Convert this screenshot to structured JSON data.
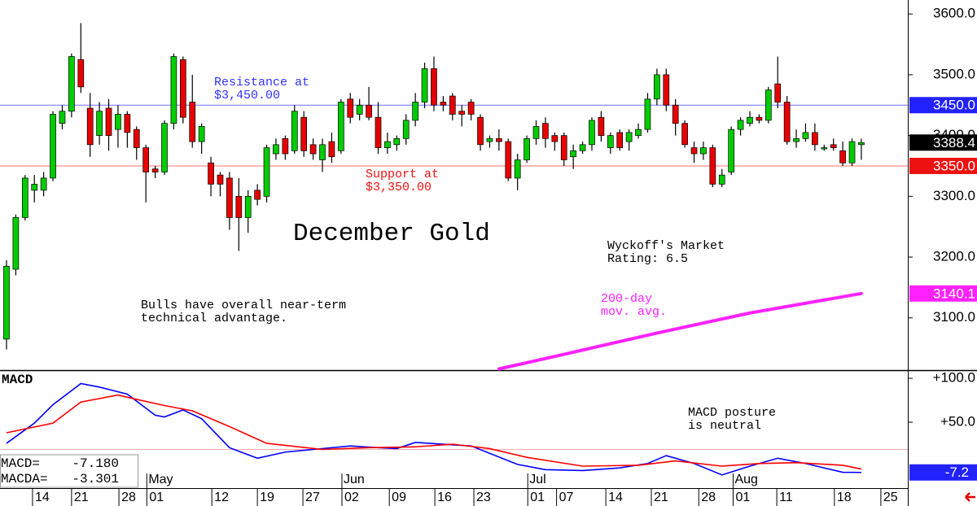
{
  "chart_data": {
    "type": "candlestick",
    "title": "December Gold",
    "up_color": "#00cc00",
    "down_color": "#e60000",
    "xlim": [
      -0.7,
      97
    ],
    "ylim": [
      3014,
      3623
    ],
    "yticks": [
      {
        "value": 3100,
        "label": "3100.0"
      },
      {
        "value": 3200,
        "label": "3200.0"
      },
      {
        "value": 3300,
        "label": "3300.0"
      },
      {
        "value": 3400,
        "label": "3400.0"
      },
      {
        "value": 3500,
        "label": "3500.0"
      },
      {
        "value": 3600,
        "label": "3600.0"
      }
    ],
    "xticks": [
      {
        "value": 2.8,
        "label": "14"
      },
      {
        "value": 7.0,
        "label": "21"
      },
      {
        "value": 12.1,
        "label": "28"
      },
      {
        "value": 15.1,
        "label": "01"
      },
      {
        "value": 22.1,
        "label": "12"
      },
      {
        "value": 27.0,
        "label": "19"
      },
      {
        "value": 31.9,
        "label": "27"
      },
      {
        "value": 36.1,
        "label": "02"
      },
      {
        "value": 41.2,
        "label": "09"
      },
      {
        "value": 46.1,
        "label": "16"
      },
      {
        "value": 50.3,
        "label": "23"
      },
      {
        "value": 56.1,
        "label": "01"
      },
      {
        "value": 59.2,
        "label": "07"
      },
      {
        "value": 64.5,
        "label": "14"
      },
      {
        "value": 69.4,
        "label": "21"
      },
      {
        "value": 74.5,
        "label": "28"
      },
      {
        "value": 78.2,
        "label": "01"
      },
      {
        "value": 82.9,
        "label": "11"
      },
      {
        "value": 89.1,
        "label": "18"
      },
      {
        "value": 94.1,
        "label": "25"
      }
    ],
    "month_ticks": [
      {
        "value": 15.1,
        "label": "May"
      },
      {
        "value": 36.1,
        "label": "Jun"
      },
      {
        "value": 56.1,
        "label": "Jul"
      },
      {
        "value": 78.2,
        "label": "Aug"
      }
    ],
    "x": [
      0,
      1,
      2,
      3,
      4,
      5,
      6,
      7,
      8,
      9,
      10,
      11,
      12,
      13,
      14,
      15,
      16,
      17,
      18,
      19,
      20,
      21,
      22,
      23,
      24,
      25,
      26,
      27,
      28,
      29,
      30,
      31,
      32,
      33,
      34,
      35,
      36,
      37,
      38,
      39,
      40,
      41,
      42,
      43,
      44,
      45,
      46,
      47,
      48,
      49,
      50,
      51,
      52,
      53,
      54,
      55,
      56,
      57,
      58,
      59,
      60,
      61,
      62,
      63,
      64,
      65,
      66,
      67,
      68,
      69,
      70,
      71,
      72,
      73,
      74,
      75,
      76,
      77,
      78,
      79,
      80,
      81,
      82,
      83,
      84,
      85,
      86,
      87,
      88,
      89,
      90,
      91,
      92
    ],
    "open": [
      3065,
      3180,
      3265,
      3310,
      3310,
      3330,
      3420,
      3440,
      3525,
      3445,
      3400,
      3445,
      3410,
      3435,
      3410,
      3380,
      3345,
      3340,
      3420,
      3525,
      3455,
      3390,
      3355,
      3335,
      3330,
      3300,
      3265,
      3310,
      3300,
      3370,
      3395,
      3375,
      3430,
      3385,
      3360,
      3390,
      3375,
      3460,
      3435,
      3450,
      3430,
      3380,
      3385,
      3395,
      3425,
      3455,
      3510,
      3455,
      3465,
      3440,
      3455,
      3430,
      3390,
      3395,
      3390,
      3330,
      3360,
      3395,
      3420,
      3400,
      3400,
      3365,
      3375,
      3385,
      3430,
      3380,
      3405,
      3390,
      3400,
      3410,
      3460,
      3500,
      3450,
      3420,
      3380,
      3370,
      3380,
      3320,
      3340,
      3410,
      3420,
      3430,
      3425,
      3485,
      3455,
      3390,
      3395,
      3405,
      3380,
      3385,
      3375,
      3355,
      3385
    ],
    "high": [
      3195,
      3270,
      3335,
      3335,
      3340,
      3440,
      3450,
      3535,
      3585,
      3470,
      3455,
      3460,
      3450,
      3440,
      3415,
      3385,
      3350,
      3425,
      3535,
      3530,
      3500,
      3420,
      3365,
      3340,
      3340,
      3330,
      3310,
      3320,
      3385,
      3395,
      3400,
      3450,
      3440,
      3395,
      3395,
      3405,
      3460,
      3470,
      3460,
      3480,
      3455,
      3405,
      3400,
      3435,
      3470,
      3520,
      3530,
      3465,
      3470,
      3450,
      3460,
      3435,
      3400,
      3410,
      3395,
      3370,
      3400,
      3425,
      3430,
      3405,
      3405,
      3385,
      3390,
      3430,
      3440,
      3405,
      3410,
      3410,
      3420,
      3470,
      3510,
      3510,
      3460,
      3425,
      3390,
      3390,
      3385,
      3345,
      3415,
      3430,
      3440,
      3435,
      3480,
      3530,
      3465,
      3410,
      3420,
      3420,
      3385,
      3395,
      3390,
      3395,
      3395
    ],
    "low": [
      3048,
      3170,
      3260,
      3290,
      3300,
      3325,
      3410,
      3430,
      3470,
      3365,
      3385,
      3375,
      3380,
      3380,
      3360,
      3290,
      3330,
      3335,
      3410,
      3420,
      3380,
      3370,
      3300,
      3300,
      3245,
      3210,
      3240,
      3285,
      3290,
      3360,
      3360,
      3370,
      3365,
      3360,
      3340,
      3355,
      3370,
      3420,
      3425,
      3425,
      3370,
      3370,
      3375,
      3385,
      3415,
      3445,
      3440,
      3440,
      3425,
      3415,
      3425,
      3375,
      3380,
      3375,
      3325,
      3310,
      3355,
      3385,
      3380,
      3375,
      3350,
      3345,
      3370,
      3375,
      3390,
      3370,
      3375,
      3375,
      3395,
      3405,
      3450,
      3440,
      3400,
      3380,
      3355,
      3360,
      3315,
      3315,
      3335,
      3400,
      3415,
      3420,
      3420,
      3445,
      3385,
      3380,
      3390,
      3375,
      3375,
      3375,
      3350,
      3350,
      3360
    ],
    "close": [
      3185,
      3265,
      3330,
      3320,
      3330,
      3435,
      3440,
      3530,
      3480,
      3385,
      3440,
      3400,
      3435,
      3405,
      3380,
      3340,
      3340,
      3420,
      3530,
      3430,
      3390,
      3415,
      3320,
      3320,
      3265,
      3265,
      3300,
      3295,
      3380,
      3385,
      3370,
      3440,
      3375,
      3370,
      3385,
      3365,
      3455,
      3430,
      3450,
      3430,
      3380,
      3390,
      3395,
      3425,
      3455,
      3510,
      3450,
      3450,
      3435,
      3435,
      3435,
      3385,
      3395,
      3390,
      3330,
      3360,
      3395,
      3415,
      3395,
      3390,
      3360,
      3375,
      3385,
      3425,
      3400,
      3400,
      3380,
      3405,
      3410,
      3460,
      3500,
      3450,
      3420,
      3385,
      3370,
      3380,
      3320,
      3335,
      3410,
      3425,
      3430,
      3425,
      3475,
      3455,
      3390,
      3395,
      3405,
      3385,
      3380,
      3380,
      3355,
      3390,
      3388.4
    ],
    "resistance": {
      "value": 3450,
      "label": "3450.0",
      "color": "#7070ff",
      "text": [
        "Resistance at",
        "$3,450.00"
      ]
    },
    "support": {
      "value": 3350,
      "label": "3350.0",
      "color": "#ff7070",
      "text": [
        "Support at",
        "$3,350.00"
      ]
    },
    "moving_average": {
      "text": [
        "200-day",
        "mov. avg."
      ],
      "color": "#ff22ff",
      "x": [
        53,
        60,
        70,
        80,
        92
      ],
      "values": [
        3016,
        3040,
        3075,
        3108,
        3140.1
      ]
    },
    "annotations": [
      {
        "text": [
          "Bulls have overall near-term",
          "technical advantage."
        ]
      },
      {
        "text": [
          "Wyckoff's Market",
          "Rating: 6.5"
        ]
      }
    ],
    "macd": {
      "title": "MACD",
      "ylim": [
        -25,
        109.3
      ],
      "yticks": [
        {
          "value": 50,
          "label": "+50.0"
        },
        {
          "value": 100,
          "label": "+100.0"
        }
      ],
      "reference": 19,
      "reference_color": "#ffb0b0",
      "note": [
        "MACD posture",
        "is neutral"
      ],
      "series": [
        {
          "name": "MACD=",
          "color": "#0000ff",
          "last_label": "-7.180",
          "axis_label": "-7.2",
          "x": [
            0,
            3,
            5,
            8,
            10,
            13,
            16,
            17,
            19,
            21,
            24,
            27,
            30,
            33,
            37,
            40,
            42,
            44,
            47,
            50,
            55,
            58,
            62,
            66,
            69,
            71,
            74,
            77,
            80,
            83,
            86,
            90,
            92
          ],
          "values": [
            26,
            49,
            70,
            94,
            90,
            82,
            58,
            56,
            64,
            54,
            21,
            9,
            16,
            19,
            23,
            21,
            20,
            27,
            25,
            23,
            2,
            -4,
            -5,
            -2,
            3,
            12,
            3,
            -10,
            0,
            9,
            3,
            -7,
            -7.18
          ]
        },
        {
          "name": "MACDA=",
          "color": "#ff0000",
          "last_label": "-3.301",
          "x": [
            0,
            5,
            8,
            12,
            14,
            17,
            20,
            24,
            28,
            34,
            39,
            44,
            48,
            52,
            56,
            62,
            68,
            72,
            77,
            81,
            85,
            90,
            92
          ],
          "values": [
            38,
            49,
            73,
            81,
            76,
            69,
            63,
            45,
            26,
            19,
            21,
            22,
            25,
            20,
            10,
            0,
            1,
            6,
            0,
            3,
            4,
            1,
            -3.301
          ]
        }
      ]
    }
  }
}
